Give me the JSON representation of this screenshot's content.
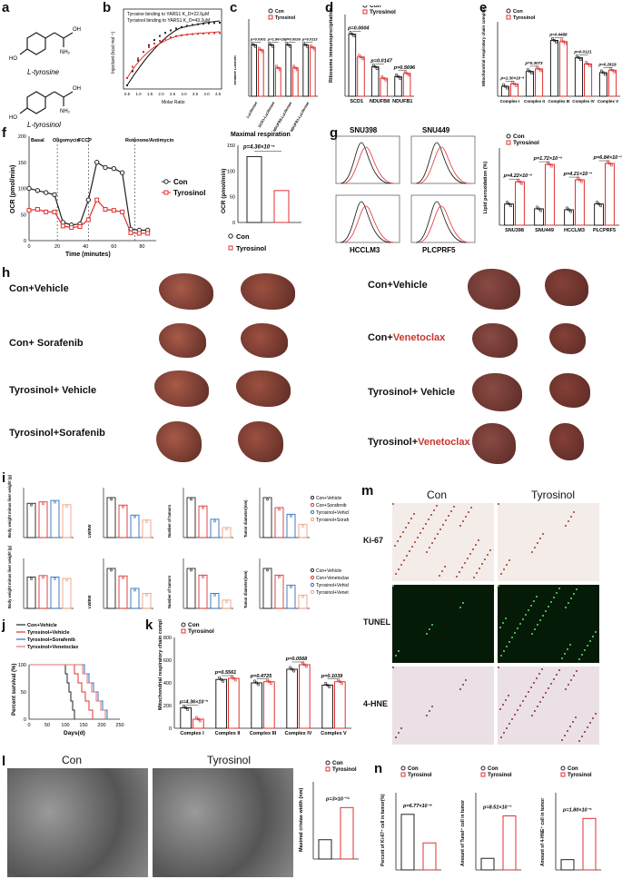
{
  "panel_labels": [
    "a",
    "b",
    "c",
    "d",
    "e",
    "f",
    "g",
    "h",
    "i",
    "j",
    "k",
    "l",
    "m",
    "n"
  ],
  "chem": {
    "top": "L-tyrosine",
    "bottom": "L-tyrosinol"
  },
  "legend": {
    "con": "Con",
    "tyr": "Tyrosinol"
  },
  "colors": {
    "con": "#222222",
    "tyr": "#e03030"
  },
  "panel_b": {
    "line1": "Tyrosine binding to YARS1  K_D=22.6μM",
    "line2": "Tyrosinol binding to YARS1  K_D=43.2μM",
    "ylabel": "Injectant (kcal mol⁻¹)",
    "xlabel": "Molar Ratio",
    "xticks": [
      "0.5",
      "1.0",
      "1.5",
      "2.0",
      "2.5",
      "3.0",
      "3.5",
      "4.0",
      "4.5"
    ]
  },
  "panel_c": {
    "ylabel": "Relative Luc/Ren",
    "categories": [
      "Luciferase",
      "SCD1-Luciferase",
      "NDUFB8-Luciferase",
      "NDUFB1-Luciferase"
    ],
    "pvals": [
      "p=0.0301",
      "p=1.96×10⁻⁵",
      "p=0.0026",
      "p=0.0113"
    ],
    "con": [
      1.0,
      1.0,
      1.0,
      1.0
    ],
    "tyr": [
      0.9,
      0.55,
      0.55,
      0.95
    ]
  },
  "panel_d": {
    "ylabel": "Ribosome immunoprecipitation mRNA (IP/INPUT)",
    "categories": [
      "SCD1",
      "NDUFB8",
      "NDUFB1"
    ],
    "pvals": [
      "p=0.0004",
      "p=0.0147",
      "p=0.5696"
    ],
    "con": [
      0.38,
      0.18,
      0.12
    ],
    "tyr": [
      0.24,
      0.11,
      0.14
    ]
  },
  "panel_e": {
    "ylabel": "Mitochondrial respiratory chain complex enzyme activity(U/10⁴ cell)",
    "categories": [
      "Complex I",
      "Complex II",
      "Complex III",
      "Complex IV",
      "Complex V"
    ],
    "pvals": [
      "p=1.30×10⁻⁸",
      "p=0.3073",
      "p=0.4488",
      "p=0.0121",
      "p=0.2819"
    ],
    "con": [
      16,
      40,
      90,
      62,
      38
    ],
    "tyr": [
      20,
      44,
      88,
      52,
      42
    ]
  },
  "panel_f": {
    "phases": [
      "Basal",
      "Oligomycin",
      "FCCP",
      "Rotenone/Antimycin"
    ],
    "ylabel": "OCR (pmol/min)",
    "xlabel": "Time (minutes)",
    "x": [
      0,
      6,
      12,
      18,
      24,
      30,
      36,
      42,
      48,
      54,
      60,
      66,
      72,
      78,
      84
    ],
    "con": [
      100,
      96,
      92,
      88,
      35,
      30,
      32,
      78,
      150,
      140,
      138,
      130,
      22,
      20,
      20
    ],
    "tyr": [
      58,
      60,
      55,
      55,
      28,
      25,
      27,
      40,
      78,
      60,
      58,
      55,
      15,
      14,
      14
    ],
    "max_title": "Maximal respiration",
    "max_p": "p=4.36×10⁻⁵",
    "max_con": 128,
    "max_tyr": 62
  },
  "panel_g": {
    "cells": [
      "SNU398",
      "SNU449",
      "HCCLM3",
      "PLCPRF5"
    ],
    "ylabel": "Lipid peroxidation (%)",
    "pvals": [
      "p=4.22×10⁻⁵",
      "p=1.72×10⁻⁵",
      "p=4.21×10⁻⁴",
      "p=6.84×10⁻⁷"
    ],
    "con": [
      22,
      17,
      16,
      22
    ],
    "tyr": [
      45,
      63,
      47,
      64
    ]
  },
  "panel_h": {
    "left_groups": [
      "Con+Vehicle",
      "Con+ Sorafenib",
      "Tyrosinol+ Vehicle",
      "Tyrosinol+Sorafenib"
    ],
    "right_groups": [
      "Con+Vehicle",
      "Con+Venetoclax",
      "Tyrosinol+ Vehicle",
      "Tyrosinol+Venetoclax"
    ]
  },
  "panel_i": {
    "legend_top": [
      "Con+Vehicle",
      "Con+Sorafenib",
      "Tyrosinol+Vehicle",
      "Tyrosinol+Sorafenib"
    ],
    "legend_bottom": [
      "Con+Vehicle",
      "Con+Venetoclax",
      "Tyrosinol+Vehicle",
      "Tyrosinol+Venetoclax"
    ],
    "ylabels": [
      "Body weight minus liver weight (g)",
      "LW/BW",
      "Number of tumors",
      "Tumor diameter(mm)"
    ],
    "top_values": [
      [
        24,
        25,
        26,
        23
      ],
      [
        0.16,
        0.13,
        0.09,
        0.07
      ],
      [
        48,
        38,
        22,
        12
      ],
      [
        12,
        9,
        7,
        4
      ]
    ],
    "bottom_values": [
      [
        22,
        23,
        22,
        21
      ],
      [
        0.16,
        0.13,
        0.08,
        0.06
      ],
      [
        48,
        40,
        18,
        10
      ],
      [
        12,
        10,
        7,
        4
      ]
    ]
  },
  "panel_j": {
    "ylabel": "Percent survival (%)",
    "xlabel": "Days(d)",
    "xticks": [
      "0",
      "50",
      "100",
      "150",
      "200",
      "250"
    ],
    "series": [
      "Con+Vehicle",
      "Tyrosinol+Vehicle",
      "Tyrosinol+Sorafenib",
      "Tyrosinol+Venetoclax"
    ]
  },
  "panel_k": {
    "ylabel": "Mitochondrial respiratory chain complex enzyme activity(U/g)",
    "categories": [
      "Complex I",
      "Complex II",
      "Complex III",
      "Complex IV",
      "Complex V"
    ],
    "pvals": [
      "p=4.36×10⁻⁵",
      "p=0.5561",
      "p=0.4725",
      "p=0.0568",
      "p=0.1039"
    ],
    "con": [
      180,
      430,
      400,
      520,
      380
    ],
    "tyr": [
      80,
      440,
      410,
      560,
      410
    ],
    "ylim": [
      0,
      800
    ]
  },
  "panel_l": {
    "con_title": "Con",
    "tyr_title": "Tyrosinol",
    "ylabel": "Maximal cristae width (nm)",
    "p": "p=3×10⁻¹⁶",
    "con": 15,
    "tyr": 40
  },
  "panel_m": {
    "cols": [
      "Con",
      "Tyrosinol"
    ],
    "rows": [
      "Ki-67",
      "TUNEL",
      "4-HNE"
    ]
  },
  "panel_n": {
    "ylabels": [
      "Percent of Ki-67⁺ cell in tumor(%)",
      "Amount of Tunel⁺ cell in tumor",
      "Amount of 4-HNE⁺ cell in tumor"
    ],
    "pvals": [
      "p=6.77×10⁻⁸",
      "p=8.51×10⁻⁷",
      "p=1.80×10⁻⁶"
    ],
    "con": [
      72,
      6,
      2
    ],
    "tyr": [
      35,
      28,
      10
    ]
  }
}
